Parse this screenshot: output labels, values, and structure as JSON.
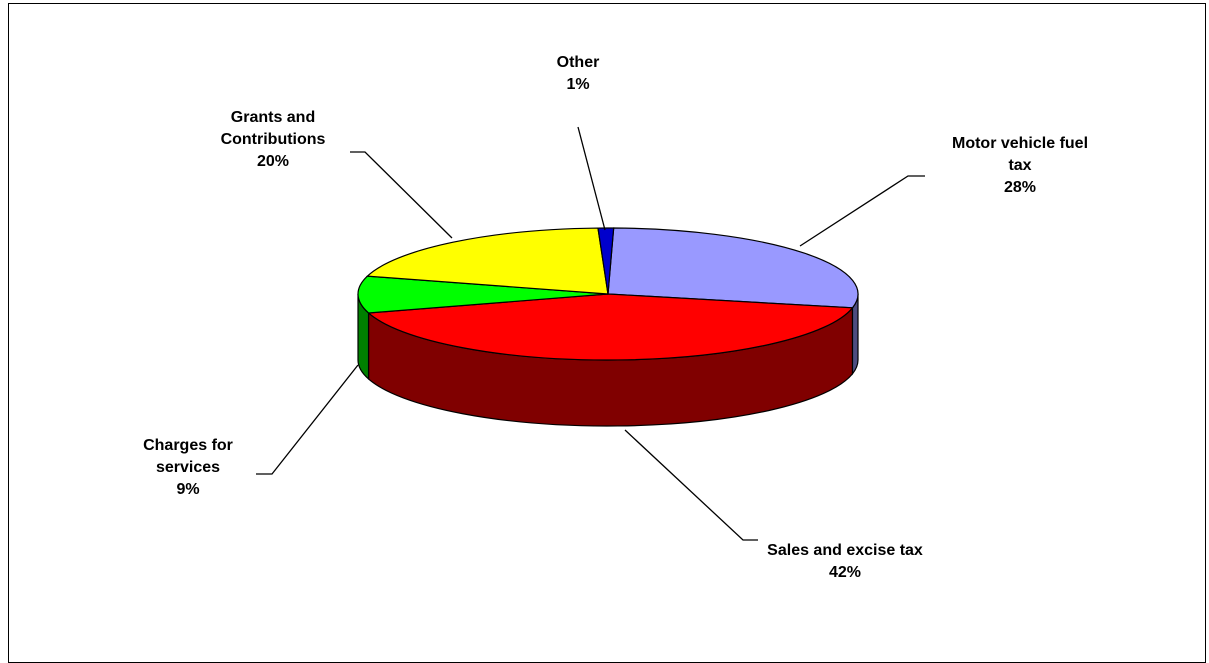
{
  "chart_data": {
    "type": "pie",
    "style": "3d-exploded-depth",
    "title": "",
    "legend": "none",
    "slices": [
      {
        "name_lines": [
          "Motor vehicle fuel",
          "tax"
        ],
        "value": 28,
        "label": "28%",
        "color": "#9999ff",
        "side_color": "#4d4d80"
      },
      {
        "name_lines": [
          "Sales and excise tax"
        ],
        "value": 42,
        "label": "42%",
        "color": "#ff0000",
        "side_color": "#800000"
      },
      {
        "name_lines": [
          "Charges for",
          "services"
        ],
        "value": 9,
        "label": "9%",
        "color": "#00ff00",
        "side_color": "#008000"
      },
      {
        "name_lines": [
          "Grants and",
          "Contributions"
        ],
        "value": 20,
        "label": "20%",
        "color": "#ffff00",
        "side_color": "#808000"
      },
      {
        "name_lines": [
          "Other"
        ],
        "value": 1,
        "label": "1%",
        "color": "#0000cc",
        "side_color": "#000066"
      }
    ]
  }
}
